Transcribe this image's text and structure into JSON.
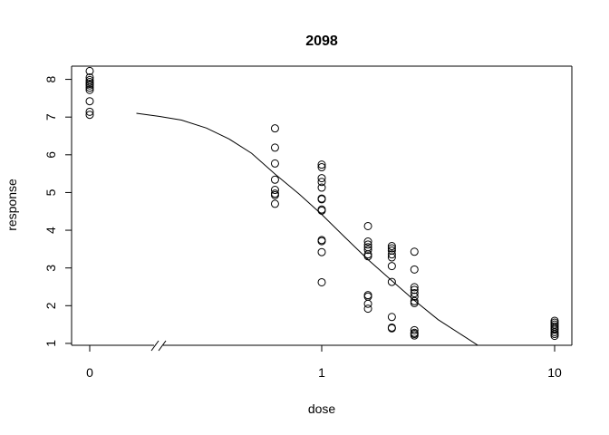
{
  "chart_data": {
    "type": "scatter",
    "title": "2098",
    "xlabel": "dose",
    "ylabel": "response",
    "x_scale": "log10 with zero-dose break",
    "x_tick_labels": [
      "0",
      "1",
      "10"
    ],
    "y_ticks": [
      1,
      2,
      3,
      4,
      5,
      6,
      7,
      8
    ],
    "ylim": [
      0.95,
      8.35
    ],
    "grid": false,
    "legend": "none",
    "points": [
      {
        "x": 0,
        "y": 8.22
      },
      {
        "x": 0,
        "y": 8.05
      },
      {
        "x": 0,
        "y": 7.98
      },
      {
        "x": 0,
        "y": 7.93
      },
      {
        "x": 0,
        "y": 7.88
      },
      {
        "x": 0,
        "y": 7.84
      },
      {
        "x": 0,
        "y": 7.78
      },
      {
        "x": 0,
        "y": 7.72
      },
      {
        "x": 0,
        "y": 7.42
      },
      {
        "x": 0,
        "y": 7.14
      },
      {
        "x": 0,
        "y": 7.06
      },
      {
        "x": 0.63,
        "y": 6.7
      },
      {
        "x": 0.63,
        "y": 6.19
      },
      {
        "x": 0.63,
        "y": 5.77
      },
      {
        "x": 0.63,
        "y": 5.34
      },
      {
        "x": 0.63,
        "y": 5.07
      },
      {
        "x": 0.63,
        "y": 4.97
      },
      {
        "x": 0.63,
        "y": 4.93
      },
      {
        "x": 0.63,
        "y": 4.7
      },
      {
        "x": 1.0,
        "y": 5.74
      },
      {
        "x": 1.0,
        "y": 5.67
      },
      {
        "x": 1.0,
        "y": 5.38
      },
      {
        "x": 1.0,
        "y": 5.28
      },
      {
        "x": 1.0,
        "y": 5.13
      },
      {
        "x": 1.0,
        "y": 4.84
      },
      {
        "x": 1.0,
        "y": 4.82
      },
      {
        "x": 1.0,
        "y": 4.55
      },
      {
        "x": 1.0,
        "y": 4.52
      },
      {
        "x": 1.0,
        "y": 3.74
      },
      {
        "x": 1.0,
        "y": 3.71
      },
      {
        "x": 1.0,
        "y": 3.42
      },
      {
        "x": 1.0,
        "y": 2.62
      },
      {
        "x": 1.58,
        "y": 4.11
      },
      {
        "x": 1.58,
        "y": 3.7
      },
      {
        "x": 1.58,
        "y": 3.62
      },
      {
        "x": 1.58,
        "y": 3.55
      },
      {
        "x": 1.58,
        "y": 3.48
      },
      {
        "x": 1.58,
        "y": 3.36
      },
      {
        "x": 1.58,
        "y": 3.31
      },
      {
        "x": 1.58,
        "y": 2.28
      },
      {
        "x": 1.58,
        "y": 2.24
      },
      {
        "x": 1.58,
        "y": 2.05
      },
      {
        "x": 1.58,
        "y": 1.92
      },
      {
        "x": 2.0,
        "y": 3.58
      },
      {
        "x": 2.0,
        "y": 3.52
      },
      {
        "x": 2.0,
        "y": 3.46
      },
      {
        "x": 2.0,
        "y": 3.36
      },
      {
        "x": 2.0,
        "y": 3.28
      },
      {
        "x": 2.0,
        "y": 3.05
      },
      {
        "x": 2.0,
        "y": 2.63
      },
      {
        "x": 2.0,
        "y": 1.7
      },
      {
        "x": 2.0,
        "y": 1.42
      },
      {
        "x": 2.0,
        "y": 1.4
      },
      {
        "x": 2.5,
        "y": 3.43
      },
      {
        "x": 2.5,
        "y": 2.96
      },
      {
        "x": 2.5,
        "y": 2.49
      },
      {
        "x": 2.5,
        "y": 2.42
      },
      {
        "x": 2.5,
        "y": 2.33
      },
      {
        "x": 2.5,
        "y": 2.24
      },
      {
        "x": 2.5,
        "y": 2.12
      },
      {
        "x": 2.5,
        "y": 2.07
      },
      {
        "x": 2.5,
        "y": 1.35
      },
      {
        "x": 2.5,
        "y": 1.28
      },
      {
        "x": 2.5,
        "y": 1.25
      },
      {
        "x": 2.5,
        "y": 1.21
      },
      {
        "x": 10,
        "y": 1.6
      },
      {
        "x": 10,
        "y": 1.55
      },
      {
        "x": 10,
        "y": 1.5
      },
      {
        "x": 10,
        "y": 1.45
      },
      {
        "x": 10,
        "y": 1.4
      },
      {
        "x": 10,
        "y": 1.36
      },
      {
        "x": 10,
        "y": 1.3
      },
      {
        "x": 10,
        "y": 1.25
      },
      {
        "x": 10,
        "y": 1.2
      }
    ],
    "fitted_curve": [
      {
        "x": 0.16,
        "y": 7.1
      },
      {
        "x": 0.2,
        "y": 7.02
      },
      {
        "x": 0.25,
        "y": 6.92
      },
      {
        "x": 0.32,
        "y": 6.71
      },
      {
        "x": 0.4,
        "y": 6.42
      },
      {
        "x": 0.5,
        "y": 6.04
      },
      {
        "x": 0.63,
        "y": 5.49
      },
      {
        "x": 0.8,
        "y": 4.96
      },
      {
        "x": 1.0,
        "y": 4.42
      },
      {
        "x": 1.26,
        "y": 3.81
      },
      {
        "x": 1.58,
        "y": 3.22
      },
      {
        "x": 2.0,
        "y": 2.66
      },
      {
        "x": 2.5,
        "y": 2.14
      },
      {
        "x": 3.16,
        "y": 1.63
      },
      {
        "x": 3.98,
        "y": 1.23
      },
      {
        "x": 4.68,
        "y": 0.95
      }
    ]
  }
}
